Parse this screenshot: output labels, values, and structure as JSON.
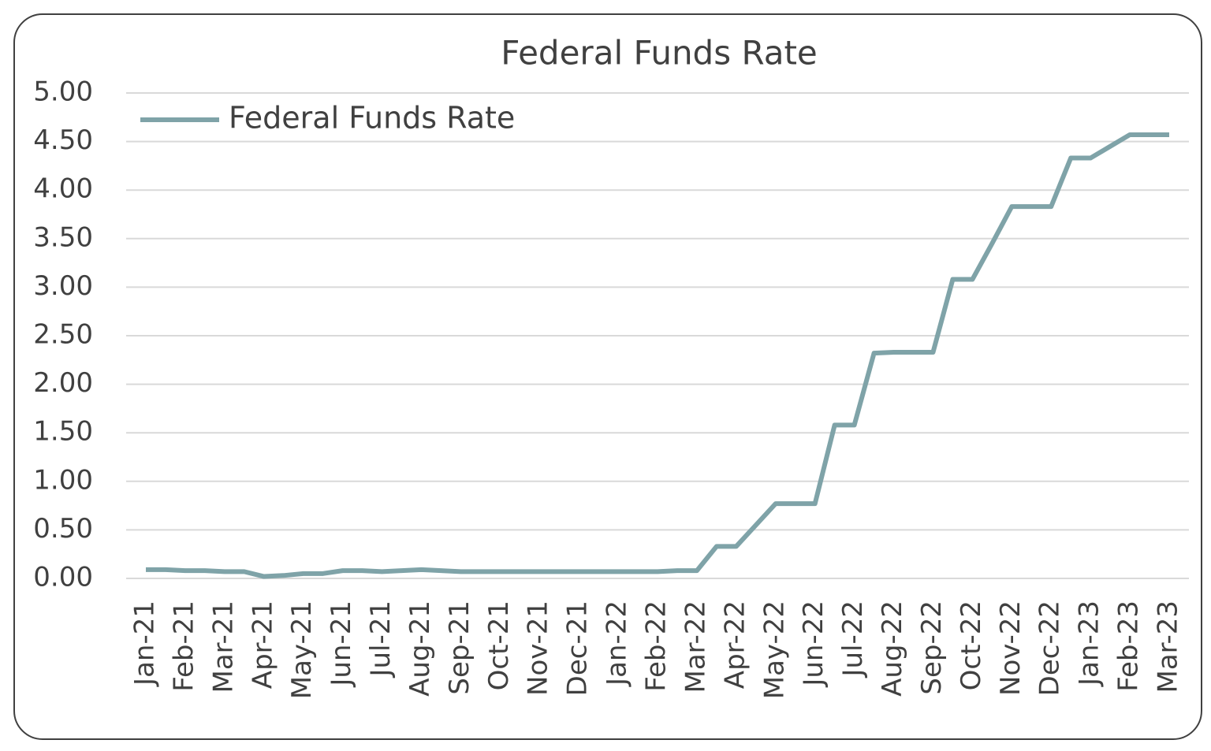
{
  "chart_data": {
    "type": "line",
    "title": "Federal Funds Rate",
    "categories": [
      "Jan-21",
      null,
      "Feb-21",
      null,
      "Mar-21",
      null,
      "Apr-21",
      null,
      "May-21",
      null,
      "Jun-21",
      null,
      "Jul-21",
      null,
      "Aug-21",
      null,
      "Sep-21",
      null,
      "Oct-21",
      null,
      "Nov-21",
      null,
      "Dec-21",
      null,
      "Jan-22",
      null,
      "Feb-22",
      null,
      "Mar-22",
      null,
      "Apr-22",
      null,
      "May-22",
      null,
      "Jun-22",
      null,
      "Jul-22",
      null,
      "Aug-22",
      null,
      "Sep-22",
      null,
      "Oct-22",
      null,
      "Nov-22",
      null,
      "Dec-22",
      null,
      "Jan-23",
      null,
      "Feb-23",
      null,
      "Mar-23"
    ],
    "series": [
      {
        "name": "Federal Funds Rate",
        "color": "#7fa3a8",
        "values": [
          0.09,
          0.09,
          0.08,
          0.08,
          0.07,
          0.07,
          0.02,
          0.03,
          0.05,
          0.05,
          0.08,
          0.08,
          0.07,
          0.08,
          0.09,
          0.08,
          0.07,
          0.07,
          0.07,
          0.07,
          0.07,
          0.07,
          0.07,
          0.07,
          0.07,
          0.07,
          0.07,
          0.08,
          0.08,
          0.33,
          0.33,
          0.55,
          0.77,
          0.77,
          0.77,
          1.58,
          1.58,
          2.32,
          2.33,
          2.33,
          2.33,
          3.08,
          3.08,
          3.45,
          3.83,
          3.83,
          3.83,
          4.33,
          4.33,
          4.45,
          4.57,
          4.57,
          4.57
        ]
      }
    ],
    "ylim": [
      0,
      5
    ],
    "yticks": [
      {
        "value": 0,
        "label": "0.00"
      },
      {
        "value": 0.5,
        "label": "0.50"
      },
      {
        "value": 1,
        "label": "1.00"
      },
      {
        "value": 1.5,
        "label": "1.50"
      },
      {
        "value": 2,
        "label": "2.00"
      },
      {
        "value": 2.5,
        "label": "2.50"
      },
      {
        "value": 3,
        "label": "3.00"
      },
      {
        "value": 3.5,
        "label": "3.50"
      },
      {
        "value": 4,
        "label": "4.00"
      },
      {
        "value": 4.5,
        "label": "4.50"
      },
      {
        "value": 5,
        "label": "5.00"
      }
    ],
    "grid": true,
    "legend": "top-left"
  }
}
